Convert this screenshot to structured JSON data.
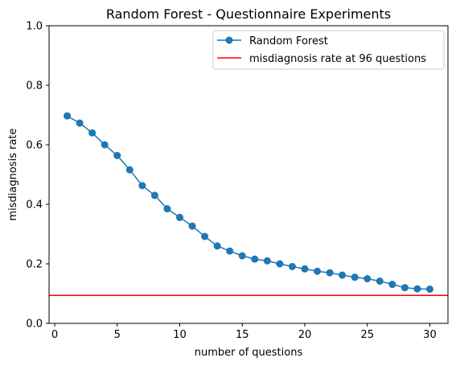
{
  "chart_data": {
    "type": "line",
    "title": "Random Forest - Questionnaire Experiments",
    "xlabel": "number of questions",
    "ylabel": "misdiagnosis rate",
    "xlim": [
      -0.45,
      31.45
    ],
    "ylim": [
      0.0,
      1.0
    ],
    "xticks": [
      0,
      5,
      10,
      15,
      20,
      25,
      30
    ],
    "yticks": [
      0.0,
      0.2,
      0.4,
      0.6,
      0.8,
      1.0
    ],
    "xtick_labels": [
      "0",
      "5",
      "10",
      "15",
      "20",
      "25",
      "30"
    ],
    "ytick_labels": [
      "0.0",
      "0.2",
      "0.4",
      "0.6",
      "0.8",
      "1.0"
    ],
    "grid": false,
    "legend_position": "upper right",
    "series": [
      {
        "name": "Random Forest",
        "color": "#1f77b4",
        "marker": "circle",
        "x": [
          1,
          2,
          3,
          4,
          5,
          6,
          7,
          8,
          9,
          10,
          11,
          12,
          13,
          14,
          15,
          16,
          17,
          18,
          19,
          20,
          21,
          22,
          23,
          24,
          25,
          26,
          27,
          28,
          29,
          30
        ],
        "y": [
          0.697,
          0.673,
          0.64,
          0.6,
          0.564,
          0.516,
          0.463,
          0.43,
          0.385,
          0.356,
          0.327,
          0.292,
          0.26,
          0.243,
          0.227,
          0.216,
          0.21,
          0.2,
          0.191,
          0.183,
          0.175,
          0.17,
          0.162,
          0.155,
          0.15,
          0.142,
          0.131,
          0.12,
          0.116,
          0.115
        ]
      }
    ],
    "reference_lines": [
      {
        "name": "misdiagnosis rate at 96 questions",
        "orientation": "horizontal",
        "y": 0.094,
        "color": "#ff0000"
      }
    ]
  }
}
